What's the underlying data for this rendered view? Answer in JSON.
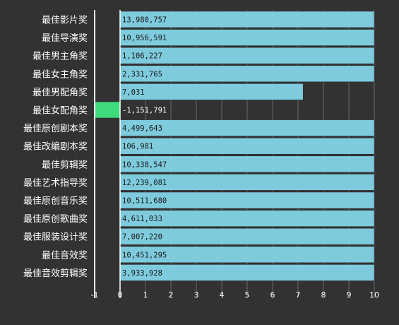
{
  "chart_data": {
    "type": "bar",
    "orientation": "horizontal",
    "categories": [
      "最佳影片奖",
      "最佳导演奖",
      "最佳男主角奖",
      "最佳女主角奖",
      "最佳男配角奖",
      "最佳女配角奖",
      "最佳原创剧本奖",
      "最佳改编剧本奖",
      "最佳剪辑奖",
      "最佳艺术指导奖",
      "最佳原创音乐奖",
      "最佳原创歌曲奖",
      "最佳服装设计奖",
      "最佳音效奖",
      "最佳音效剪辑奖"
    ],
    "values": [
      13980757,
      10956591,
      1106227,
      2331765,
      7031,
      -1151791,
      4499643,
      106981,
      10338547,
      12239081,
      10511680,
      4611033,
      7007220,
      10451295,
      3933928
    ],
    "value_labels": [
      "13,980,757",
      "10,956,591",
      "1,106,227",
      "2,331,765",
      "7,031",
      "-1,151,791",
      "4,499,643",
      "106,981",
      "10,338,547",
      "12,239,081",
      "10,511,680",
      "4,611,033",
      "7,007,220",
      "10,451,295",
      "3,933,928"
    ],
    "plotted_values": [
      10,
      10,
      10,
      10,
      7.2,
      -1,
      10,
      10,
      10,
      10,
      10,
      10,
      10,
      10,
      10
    ],
    "xlim": [
      -1,
      10
    ],
    "xticks": [
      -1,
      0,
      1,
      2,
      3,
      4,
      5,
      6,
      7,
      8,
      9,
      10
    ],
    "xtick_labels": [
      "-1",
      "0",
      "1",
      "2",
      "3",
      "4",
      "5",
      "6",
      "7",
      "8",
      "9",
      "10"
    ],
    "grid": true,
    "title": "",
    "xlabel": "",
    "ylabel": "",
    "colors": {
      "positive": "#7ecbdd",
      "negative": "#3ddb7c",
      "background": "#323232",
      "grid": "#6a6a6a",
      "text": "#ffffff"
    }
  }
}
